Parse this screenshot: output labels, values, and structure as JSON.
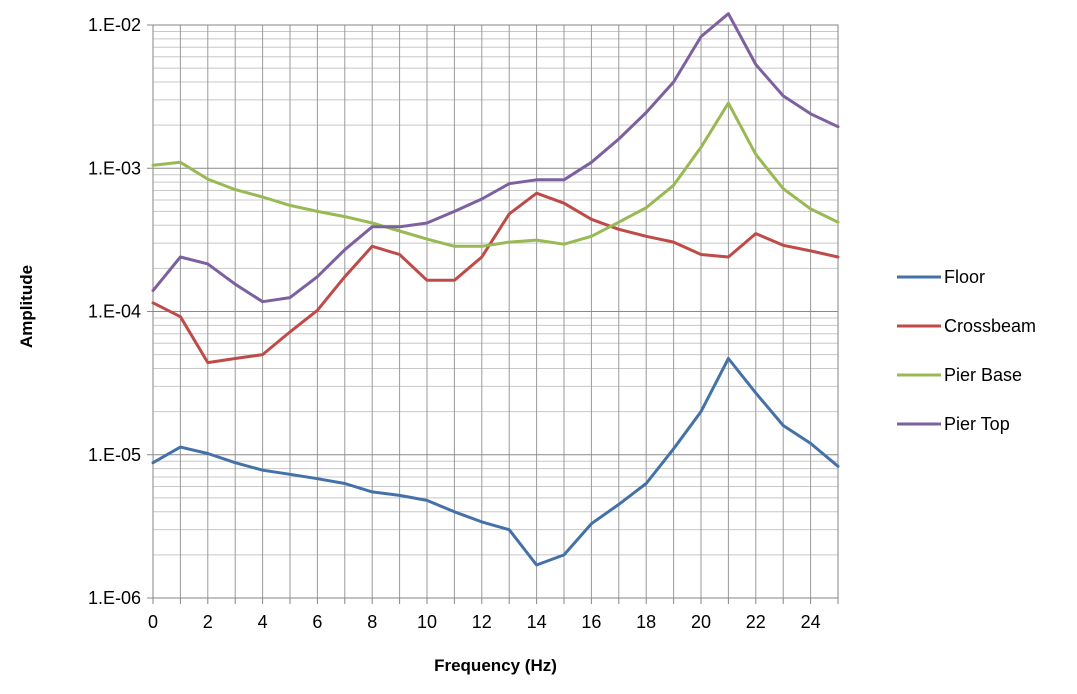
{
  "chart_data": {
    "type": "line",
    "xlabel": "Frequency (Hz)",
    "ylabel": "Amplitude",
    "xlim": [
      0,
      25
    ],
    "ylim": [
      1e-06,
      0.01
    ],
    "yscale": "log",
    "grid": true,
    "legend_position": "right",
    "x_ticks": [
      "0",
      "2",
      "4",
      "6",
      "8",
      "10",
      "12",
      "14",
      "16",
      "18",
      "20",
      "22",
      "24"
    ],
    "y_ticks": [
      "1.E-06",
      "1.E-05",
      "1.E-04",
      "1.E-03",
      "1.E-02"
    ],
    "x": [
      0,
      1,
      2,
      3,
      4,
      5,
      6,
      7,
      8,
      9,
      10,
      11,
      12,
      13,
      14,
      15,
      16,
      17,
      18,
      19,
      20,
      21,
      22,
      23,
      24,
      25
    ],
    "series": [
      {
        "name": "Floor",
        "color": "#4472a8",
        "values": [
          8.8e-06,
          1.13e-05,
          1.02e-05,
          8.8e-06,
          7.8e-06,
          7.3e-06,
          6.8e-06,
          6.3e-06,
          5.5e-06,
          5.2e-06,
          4.8e-06,
          4e-06,
          3.4e-06,
          3e-06,
          1.7e-06,
          2e-06,
          3.3e-06,
          4.5e-06,
          6.3e-06,
          1.1e-05,
          2e-05,
          4.7e-05,
          2.7e-05,
          1.6e-05,
          1.2e-05,
          8.3e-06
        ]
      },
      {
        "name": "Crossbeam",
        "color": "#be4b48",
        "values": [
          0.000115,
          9.2e-05,
          4.4e-05,
          4.7e-05,
          5e-05,
          7.2e-05,
          0.000102,
          0.000175,
          0.000285,
          0.00025,
          0.000165,
          0.000165,
          0.00024,
          0.00048,
          0.00067,
          0.00057,
          0.00044,
          0.000375,
          0.000335,
          0.000305,
          0.00025,
          0.00024,
          0.00035,
          0.00029,
          0.000265,
          0.00024
        ]
      },
      {
        "name": "Pier Base",
        "color": "#98b954",
        "values": [
          0.00105,
          0.0011,
          0.00084,
          0.00071,
          0.00063,
          0.00055,
          0.0005,
          0.00046,
          0.000415,
          0.000365,
          0.00032,
          0.000285,
          0.000285,
          0.000305,
          0.000315,
          0.000295,
          0.000335,
          0.00042,
          0.00053,
          0.00076,
          0.0014,
          0.00285,
          0.00125,
          0.00072,
          0.00052,
          0.00042
        ]
      },
      {
        "name": "Pier Top",
        "color": "#7d60a0",
        "values": [
          0.00014,
          0.00024,
          0.000215,
          0.000155,
          0.000117,
          0.000125,
          0.000175,
          0.00027,
          0.00039,
          0.00039,
          0.000415,
          0.0005,
          0.00061,
          0.00078,
          0.00083,
          0.00083,
          0.0011,
          0.0016,
          0.00245,
          0.004,
          0.0083,
          0.012,
          0.0053,
          0.0032,
          0.0024,
          0.00195
        ]
      }
    ]
  }
}
